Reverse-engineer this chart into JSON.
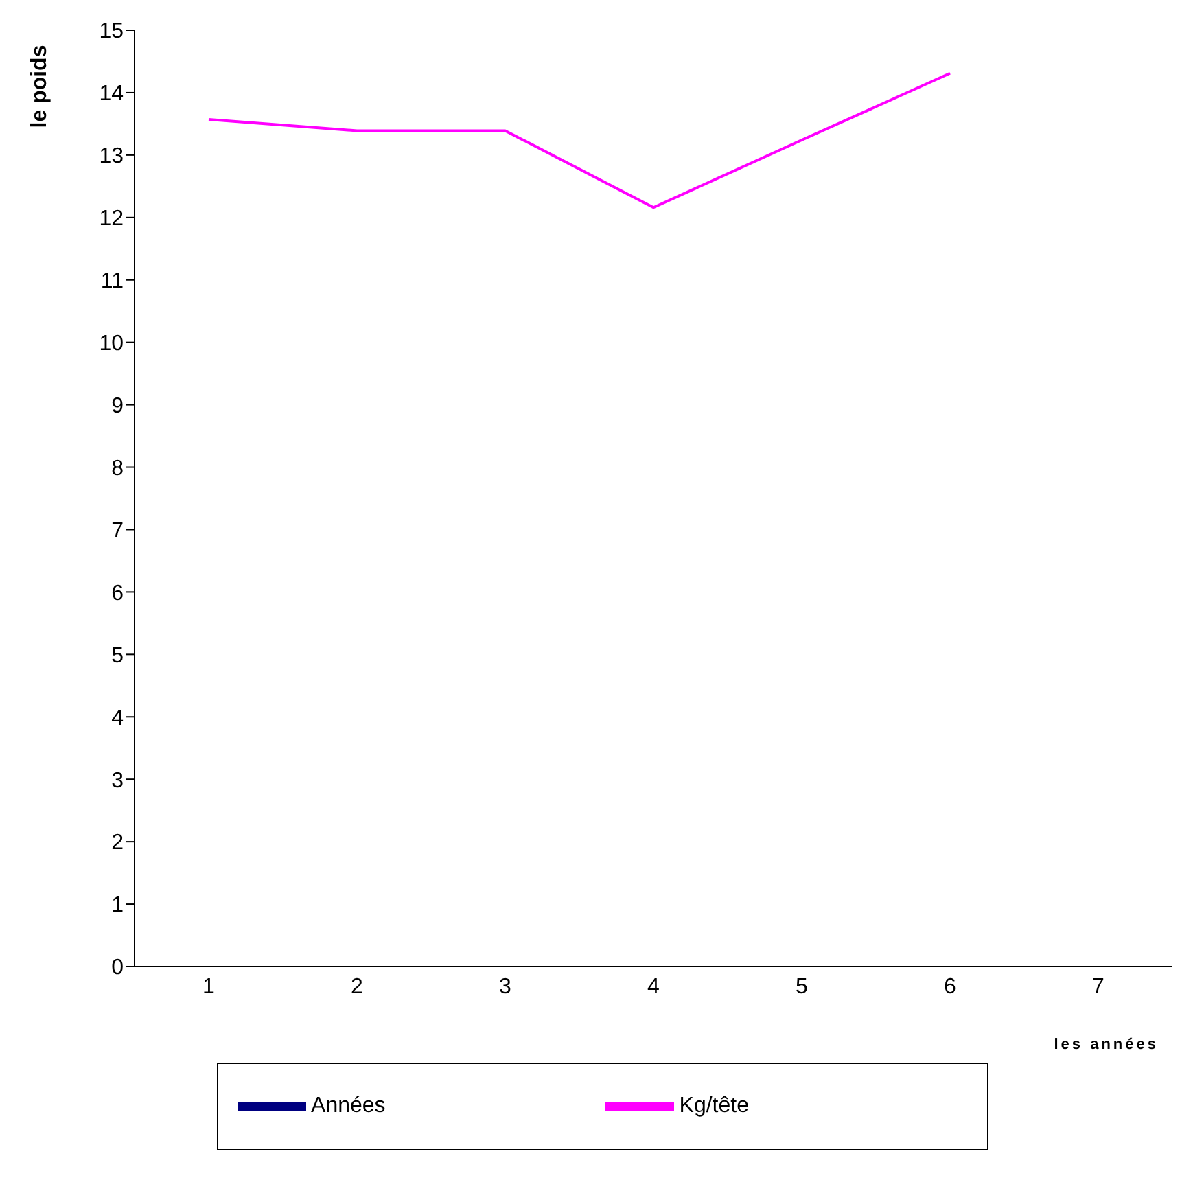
{
  "chart_data": {
    "type": "line",
    "xlabel": "les années",
    "ylabel": "le poids",
    "categories": [
      "1",
      "2",
      "3",
      "4",
      "5",
      "6",
      "7"
    ],
    "series": [
      {
        "name": "Années",
        "color": "#000080",
        "values": [
          null,
          null,
          null,
          null,
          null,
          null,
          null
        ]
      },
      {
        "name": "Kg/tête",
        "color": "#ff00ff",
        "values": [
          13.57,
          13.39,
          13.39,
          12.16,
          13.24,
          14.31,
          null
        ]
      }
    ],
    "ylim": [
      0,
      15
    ],
    "yticks": [
      0,
      1,
      2,
      3,
      4,
      5,
      6,
      7,
      8,
      9,
      10,
      11,
      12,
      13,
      14,
      15
    ],
    "grid": false,
    "legend": "bottom",
    "marker": "none",
    "line_style": "solid"
  }
}
